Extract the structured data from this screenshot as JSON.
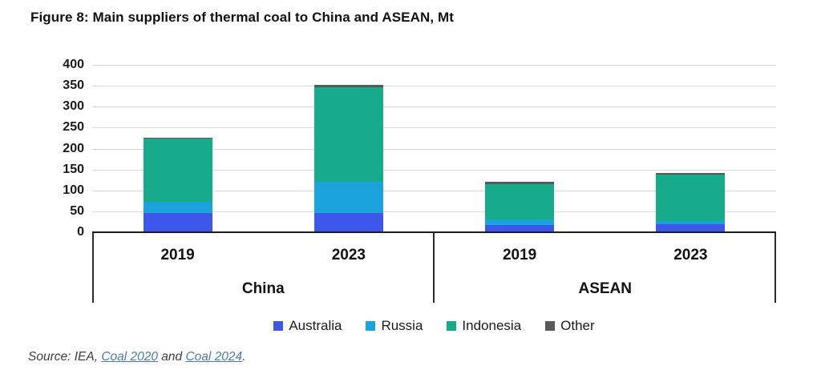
{
  "title": "Figure 8: Main suppliers of thermal coal to China and ASEAN, Mt",
  "chart_data": {
    "type": "bar",
    "stacked": true,
    "title": "Figure 8: Main suppliers of thermal coal to China and ASEAN, Mt",
    "unit": "Mt",
    "categories": [
      "2019",
      "2023",
      "2019",
      "2023"
    ],
    "groups": [
      {
        "label": "China",
        "category_indexes": [
          0,
          1
        ]
      },
      {
        "label": "ASEAN",
        "category_indexes": [
          2,
          3
        ]
      }
    ],
    "series": [
      {
        "name": "Australia",
        "color": "#3c57ea",
        "values": [
          46,
          46,
          18,
          19
        ]
      },
      {
        "name": "Russia",
        "color": "#1ba3dc",
        "values": [
          26,
          75,
          12,
          8
        ]
      },
      {
        "name": "Indonesia",
        "color": "#17ab8c",
        "values": [
          152,
          226,
          85,
          110
        ]
      },
      {
        "name": "Other",
        "color": "#595959",
        "values": [
          1,
          5,
          5,
          5
        ]
      }
    ],
    "totals": [
      225,
      352,
      120,
      142
    ],
    "ylim": [
      0,
      400
    ],
    "yticks": [
      0,
      50,
      100,
      150,
      200,
      250,
      300,
      350,
      400
    ],
    "grid": true,
    "gridline_color": "#d9d9d9",
    "legend_position": "bottom"
  },
  "legend_labels": [
    "Australia",
    "Russia",
    "Indonesia",
    "Other"
  ],
  "source": {
    "parts": [
      {
        "text": "Source: IEA, ",
        "type": "text"
      },
      {
        "text": "Coal 2020",
        "type": "link"
      },
      {
        "text": " and ",
        "type": "text"
      },
      {
        "text": "Coal 2024",
        "type": "link"
      },
      {
        "text": ".",
        "type": "text"
      }
    ]
  }
}
